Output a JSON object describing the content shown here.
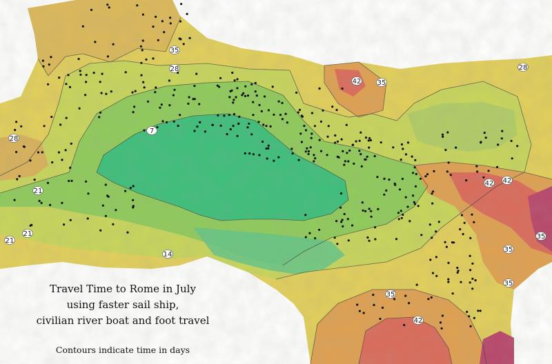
{
  "title_lines": [
    "Travel Time to Rome in July",
    "using faster sail ship,",
    "civilian river boat and foot travel"
  ],
  "note": "Contours indicate time in days",
  "contour_labels": [
    "7",
    "14",
    "21",
    "21",
    "21",
    "28",
    "28",
    "28",
    "35",
    "35",
    "35",
    "35",
    "35",
    "42",
    "42",
    "42",
    "42",
    "35"
  ],
  "colors": {
    "band_7": "#3cbf7a",
    "band_14": "#8fcb5a",
    "band_21": "#c8d65a",
    "band_28": "#e2cf5a",
    "band_35": "#e0a050",
    "band_42": "#dc6a5a",
    "band_49": "#b9456a",
    "dot": "#111111"
  }
}
